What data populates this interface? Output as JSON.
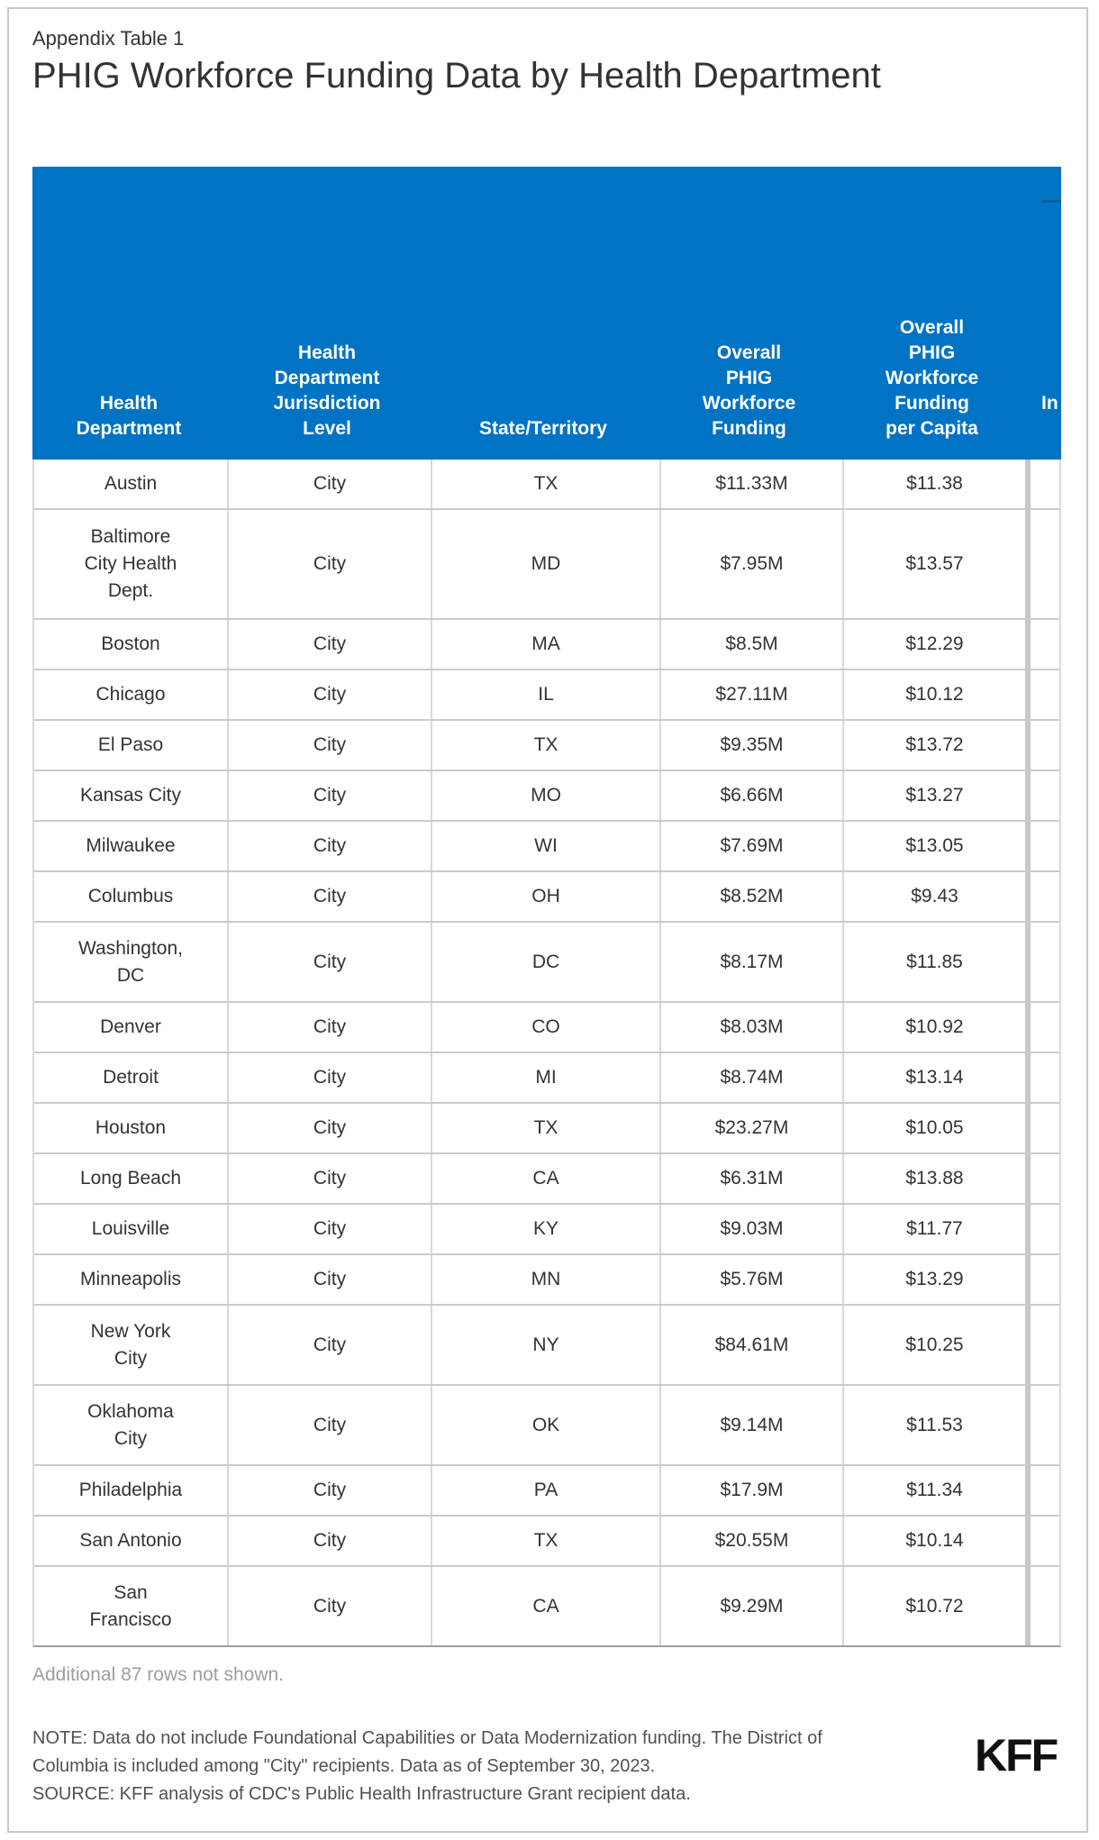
{
  "page": {
    "appendix_label": "Appendix Table 1",
    "title": "PHIG Workforce Funding Data by Health Department",
    "additional_rows_note": "Additional 87 rows not shown.",
    "note": "NOTE: Data do not include Foundational Capabilities or Data Modernization funding. The District of\nColumbia is included among \"City\" recipients. Data as of September 30, 2023.",
    "source": "SOURCE: KFF analysis of CDC's Public Health Infrastructure Grant recipient data.",
    "logo": "KFF"
  },
  "colors": {
    "header_bg": "#0173C4",
    "header_text": "#ffffff",
    "header_dash": "#0B5E97",
    "row_divider": "#cbcbcb",
    "column_divider": "#d8d8d8",
    "body_text": "#333333",
    "muted_text": "#9e9e9e"
  },
  "table": {
    "header": {
      "cells": [
        {
          "label": "Health\nDepartment"
        },
        {
          "label": "Health\nDepartment\nJurisdiction\nLevel"
        },
        {
          "label": "State/Territory"
        },
        {
          "label": "Overall\nPHIG\nWorkforce\nFunding"
        },
        {
          "label": "Overall\nPHIG\nWorkforce\nFunding\nper Capita"
        },
        {
          "label": "In",
          "truncated": true
        }
      ]
    },
    "rows": [
      {
        "dept": "Austin",
        "level": "City",
        "state": "TX",
        "funding": "$11.33M",
        "per_capita": "$11.38",
        "lines": 1
      },
      {
        "dept": "Baltimore\nCity Health\nDept.",
        "level": "City",
        "state": "MD",
        "funding": "$7.95M",
        "per_capita": "$13.57",
        "lines": 3
      },
      {
        "dept": "Boston",
        "level": "City",
        "state": "MA",
        "funding": "$8.5M",
        "per_capita": "$12.29",
        "lines": 1
      },
      {
        "dept": "Chicago",
        "level": "City",
        "state": "IL",
        "funding": "$27.11M",
        "per_capita": "$10.12",
        "lines": 1
      },
      {
        "dept": "El Paso",
        "level": "City",
        "state": "TX",
        "funding": "$9.35M",
        "per_capita": "$13.72",
        "lines": 1
      },
      {
        "dept": "Kansas City",
        "level": "City",
        "state": "MO",
        "funding": "$6.66M",
        "per_capita": "$13.27",
        "lines": 1
      },
      {
        "dept": "Milwaukee",
        "level": "City",
        "state": "WI",
        "funding": "$7.69M",
        "per_capita": "$13.05",
        "lines": 1
      },
      {
        "dept": "Columbus",
        "level": "City",
        "state": "OH",
        "funding": "$8.52M",
        "per_capita": "$9.43",
        "lines": 1
      },
      {
        "dept": "Washington,\nDC",
        "level": "City",
        "state": "DC",
        "funding": "$8.17M",
        "per_capita": "$11.85",
        "lines": 2
      },
      {
        "dept": "Denver",
        "level": "City",
        "state": "CO",
        "funding": "$8.03M",
        "per_capita": "$10.92",
        "lines": 1
      },
      {
        "dept": "Detroit",
        "level": "City",
        "state": "MI",
        "funding": "$8.74M",
        "per_capita": "$13.14",
        "lines": 1
      },
      {
        "dept": "Houston",
        "level": "City",
        "state": "TX",
        "funding": "$23.27M",
        "per_capita": "$10.05",
        "lines": 1
      },
      {
        "dept": "Long Beach",
        "level": "City",
        "state": "CA",
        "funding": "$6.31M",
        "per_capita": "$13.88",
        "lines": 1
      },
      {
        "dept": "Louisville",
        "level": "City",
        "state": "KY",
        "funding": "$9.03M",
        "per_capita": "$11.77",
        "lines": 1
      },
      {
        "dept": "Minneapolis",
        "level": "City",
        "state": "MN",
        "funding": "$5.76M",
        "per_capita": "$13.29",
        "lines": 1
      },
      {
        "dept": "New York\nCity",
        "level": "City",
        "state": "NY",
        "funding": "$84.61M",
        "per_capita": "$10.25",
        "lines": 2
      },
      {
        "dept": "Oklahoma\nCity",
        "level": "City",
        "state": "OK",
        "funding": "$9.14M",
        "per_capita": "$11.53",
        "lines": 2
      },
      {
        "dept": "Philadelphia",
        "level": "City",
        "state": "PA",
        "funding": "$17.9M",
        "per_capita": "$11.34",
        "lines": 1
      },
      {
        "dept": "San Antonio",
        "level": "City",
        "state": "TX",
        "funding": "$20.55M",
        "per_capita": "$10.14",
        "lines": 1
      },
      {
        "dept": "San\nFrancisco",
        "level": "City",
        "state": "CA",
        "funding": "$9.29M",
        "per_capita": "$10.72",
        "lines": 2
      }
    ]
  },
  "chart_data": {
    "type": "table",
    "title": "PHIG Workforce Funding Data by Health Department",
    "subtitle": "Appendix Table 1",
    "columns": [
      "Health Department",
      "Health Department Jurisdiction Level",
      "State/Territory",
      "Overall PHIG Workforce Funding",
      "Overall PHIG Workforce Funding per Capita",
      "In (truncated column)"
    ],
    "rows": [
      [
        "Austin",
        "City",
        "TX",
        "$11.33M",
        "$11.38"
      ],
      [
        "Baltimore City Health Dept.",
        "City",
        "MD",
        "$7.95M",
        "$13.57"
      ],
      [
        "Boston",
        "City",
        "MA",
        "$8.5M",
        "$12.29"
      ],
      [
        "Chicago",
        "City",
        "IL",
        "$27.11M",
        "$10.12"
      ],
      [
        "El Paso",
        "City",
        "TX",
        "$9.35M",
        "$13.72"
      ],
      [
        "Kansas City",
        "City",
        "MO",
        "$6.66M",
        "$13.27"
      ],
      [
        "Milwaukee",
        "City",
        "WI",
        "$7.69M",
        "$13.05"
      ],
      [
        "Columbus",
        "City",
        "OH",
        "$8.52M",
        "$9.43"
      ],
      [
        "Washington, DC",
        "City",
        "DC",
        "$8.17M",
        "$11.85"
      ],
      [
        "Denver",
        "City",
        "CO",
        "$8.03M",
        "$10.92"
      ],
      [
        "Detroit",
        "City",
        "MI",
        "$8.74M",
        "$13.14"
      ],
      [
        "Houston",
        "City",
        "TX",
        "$23.27M",
        "$10.05"
      ],
      [
        "Long Beach",
        "City",
        "CA",
        "$6.31M",
        "$13.88"
      ],
      [
        "Louisville",
        "City",
        "KY",
        "$9.03M",
        "$11.77"
      ],
      [
        "Minneapolis",
        "City",
        "MN",
        "$5.76M",
        "$13.29"
      ],
      [
        "New York City",
        "City",
        "NY",
        "$84.61M",
        "$10.25"
      ],
      [
        "Oklahoma City",
        "City",
        "OK",
        "$9.14M",
        "$11.53"
      ],
      [
        "Philadelphia",
        "City",
        "PA",
        "$17.9M",
        "$11.34"
      ],
      [
        "San Antonio",
        "City",
        "TX",
        "$20.55M",
        "$10.14"
      ],
      [
        "San Francisco",
        "City",
        "CA",
        "$9.29M",
        "$10.72"
      ]
    ],
    "footnote": "Additional 87 rows not shown."
  }
}
